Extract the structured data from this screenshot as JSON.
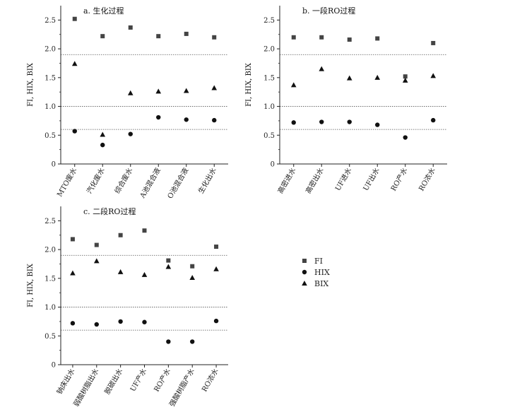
{
  "chart_data": [
    {
      "type": "scatter",
      "title": "a. 生化过程",
      "ylabel": "FI, HIX, BIX",
      "ylim": [
        0,
        2.75
      ],
      "yticks": [
        "0",
        "0.5",
        "1.0",
        "1.5",
        "2.0",
        "2.5"
      ],
      "categories": [
        "MTO废水",
        "汽化废水",
        "综合废水",
        "A池混合液",
        "O池混合液",
        "生化出水"
      ],
      "reference_lines": [
        1.9,
        1.0,
        0.6
      ],
      "series": [
        {
          "name": "FI",
          "marker": "square",
          "values": [
            2.52,
            2.22,
            2.37,
            2.22,
            2.26,
            2.2
          ]
        },
        {
          "name": "HIX",
          "marker": "circle",
          "values": [
            0.57,
            0.33,
            0.52,
            0.81,
            0.77,
            0.76
          ]
        },
        {
          "name": "BIX",
          "marker": "triangle",
          "values": [
            1.74,
            0.51,
            1.23,
            1.26,
            1.27,
            1.32
          ]
        }
      ]
    },
    {
      "type": "scatter",
      "title": "b. 一段RO过程",
      "ylabel": "FI, HIX, BIX",
      "ylim": [
        0,
        2.75
      ],
      "yticks": [
        "0",
        "0.5",
        "1.0",
        "1.5",
        "2.0",
        "2.5"
      ],
      "categories": [
        "高密进水",
        "高密出水",
        "UF进水",
        "UF出水",
        "RO产水",
        "RO浓水"
      ],
      "reference_lines": [
        1.9,
        1.0,
        0.6
      ],
      "series": [
        {
          "name": "FI",
          "marker": "square",
          "values": [
            2.2,
            2.2,
            2.16,
            2.18,
            1.52,
            2.1
          ]
        },
        {
          "name": "HIX",
          "marker": "circle",
          "values": [
            0.72,
            0.73,
            0.73,
            0.68,
            0.46,
            0.76
          ]
        },
        {
          "name": "BIX",
          "marker": "triangle",
          "values": [
            1.37,
            1.65,
            1.49,
            1.5,
            1.45,
            1.53
          ]
        }
      ]
    },
    {
      "type": "scatter",
      "title": "c. 二段RO过程",
      "ylabel": "FI, HIX, BIX",
      "ylim": [
        0,
        2.75
      ],
      "yticks": [
        "0",
        "0.5",
        "1.0",
        "1.5",
        "2.0",
        "2.5"
      ],
      "categories": [
        "钠床出水",
        "弱酸树脂出水",
        "脱碳出水",
        "UF产水",
        "RO产水",
        "强酸树脂产水",
        "RO浓水"
      ],
      "reference_lines": [
        1.9,
        1.0,
        0.6
      ],
      "series": [
        {
          "name": "FI",
          "marker": "square",
          "values": [
            2.18,
            2.08,
            2.25,
            2.33,
            1.81,
            1.71,
            2.05
          ]
        },
        {
          "name": "HIX",
          "marker": "circle",
          "values": [
            0.72,
            0.7,
            0.75,
            0.74,
            0.4,
            0.4,
            0.76
          ]
        },
        {
          "name": "BIX",
          "marker": "triangle",
          "values": [
            1.59,
            1.8,
            1.61,
            1.56,
            1.7,
            1.51,
            1.66
          ]
        }
      ]
    }
  ],
  "legend": {
    "placement": "right",
    "items": [
      {
        "label": "FI",
        "marker": "square"
      },
      {
        "label": "HIX",
        "marker": "circle"
      },
      {
        "label": "BIX",
        "marker": "triangle"
      }
    ]
  },
  "colors": {
    "marker": "#111111",
    "square_marker": "#444444",
    "axis": "#222222",
    "reference_line": "#555555"
  }
}
